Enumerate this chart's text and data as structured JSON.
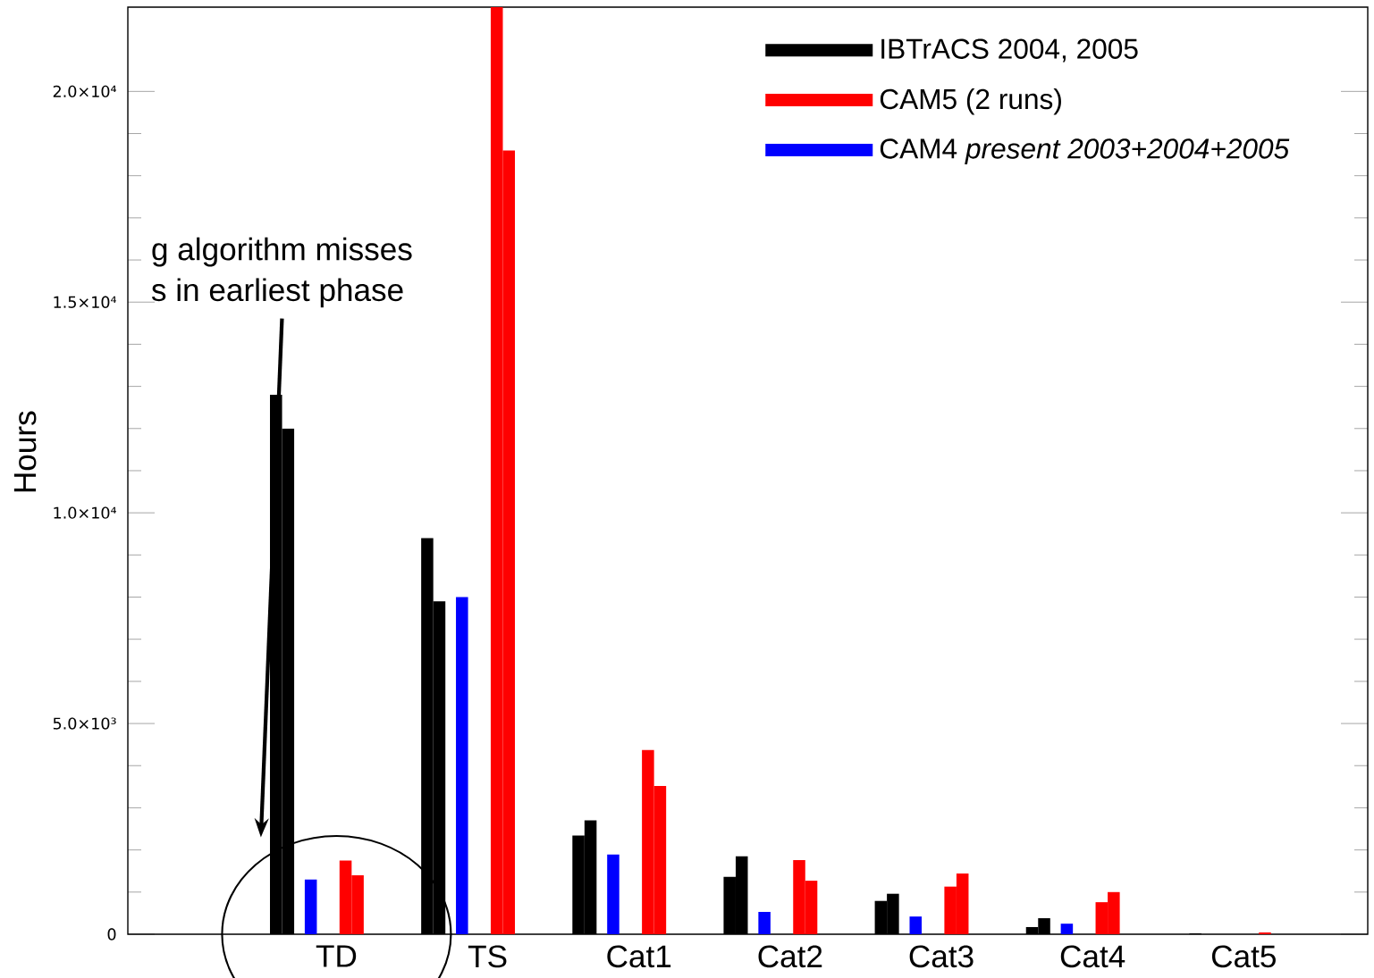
{
  "chart_data": {
    "type": "bar",
    "ylabel": "Hours",
    "categories": [
      "TD",
      "TS",
      "Cat1",
      "Cat2",
      "Cat3",
      "Cat4",
      "Cat5"
    ],
    "series": [
      {
        "name": "IBTrACS 2004, 2005",
        "color": "#000000",
        "values": [
          12800,
          9400,
          2340,
          1360,
          790,
          170,
          0
        ]
      },
      {
        "color": "#000000",
        "values": [
          12000,
          7900,
          2700,
          1850,
          960,
          380,
          20
        ]
      },
      {
        "name": "CAM5 (2 runs)",
        "color": "#ff0000",
        "values": [
          1750,
          22000,
          4370,
          1760,
          1130,
          760,
          0
        ]
      },
      {
        "color": "#ff0000",
        "values": [
          1400,
          18600,
          3520,
          1270,
          1440,
          1000,
          40
        ]
      },
      {
        "name": "CAM4 *present 2003+2004+2005*",
        "color": "#0000ff",
        "values": [
          1300,
          8000,
          1890,
          530,
          420,
          250,
          0
        ]
      }
    ],
    "ylim": [
      0,
      22000
    ],
    "yticks": [
      0,
      {
        "value": 5000,
        "label": "5.0×10³"
      },
      {
        "value": 10000,
        "label": "1.0×10⁴"
      },
      {
        "value": 15000,
        "label": "1.5×10⁴"
      },
      {
        "value": 20000,
        "label": "2.0×10⁴"
      }
    ],
    "legend": "top right",
    "annotations": [
      "g algorithm misses",
      "s in earliest phase"
    ]
  }
}
